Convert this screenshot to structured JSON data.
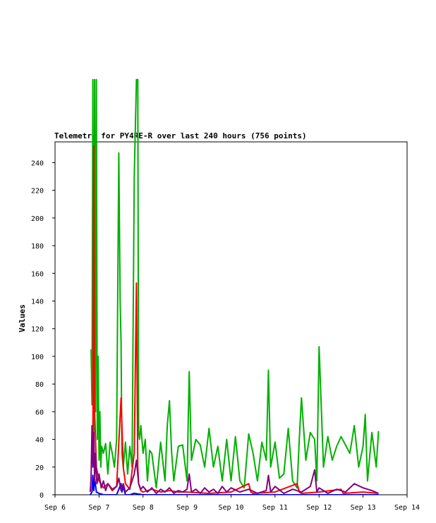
{
  "chart_data": {
    "type": "line",
    "title": "Telemetry for PY4RE-R over last 240 hours (756 points)",
    "xlabel": "",
    "ylabel": "Values",
    "x_ticks": [
      "Sep 6",
      "Sep 7",
      "Sep 8",
      "Sep 9",
      "Sep 10",
      "Sep 11",
      "Sep 12",
      "Sep 13",
      "Sep 14"
    ],
    "xlim": [
      6,
      14
    ],
    "ylim": [
      0,
      255
    ],
    "y_ticks": [
      0,
      20,
      40,
      60,
      80,
      100,
      120,
      140,
      160,
      180,
      200,
      220,
      240
    ],
    "grid": false,
    "legend": "none",
    "series": [
      {
        "color": "#00b000",
        "x": [
          6.82,
          6.84,
          6.86,
          6.88,
          6.9,
          6.92,
          6.94,
          6.96,
          6.98,
          7.0,
          7.02,
          7.04,
          7.06,
          7.1,
          7.15,
          7.2,
          7.25,
          7.3,
          7.35,
          7.4,
          7.45,
          7.48,
          7.5,
          7.52,
          7.55,
          7.6,
          7.65,
          7.7,
          7.75,
          7.8,
          7.85,
          7.88,
          7.9,
          7.92,
          7.95,
          8.0,
          8.05,
          8.1,
          8.15,
          8.2,
          8.3,
          8.4,
          8.5,
          8.55,
          8.6,
          8.65,
          8.7,
          8.8,
          8.9,
          9.0,
          9.05,
          9.1,
          9.2,
          9.3,
          9.4,
          9.5,
          9.6,
          9.7,
          9.8,
          9.9,
          10.0,
          10.1,
          10.2,
          10.3,
          10.4,
          10.5,
          10.6,
          10.7,
          10.8,
          10.85,
          10.9,
          11.0,
          11.1,
          11.2,
          11.3,
          11.4,
          11.5,
          11.55,
          11.6,
          11.7,
          11.8,
          11.9,
          11.95,
          12.0,
          12.1,
          12.2,
          12.3,
          12.4,
          12.5,
          12.6,
          12.7,
          12.8,
          12.9,
          13.0,
          13.05,
          13.1,
          13.2,
          13.3,
          13.35
        ],
        "y": [
          105,
          65,
          300,
          45,
          300,
          60,
          300,
          40,
          100,
          25,
          60,
          20,
          35,
          30,
          37,
          15,
          38,
          30,
          20,
          40,
          247,
          140,
          110,
          30,
          20,
          38,
          15,
          35,
          20,
          230,
          300,
          300,
          45,
          40,
          50,
          30,
          40,
          10,
          32,
          30,
          5,
          38,
          10,
          50,
          68,
          30,
          10,
          35,
          36,
          10,
          89,
          25,
          40,
          36,
          20,
          48,
          20,
          35,
          10,
          40,
          10,
          42,
          10,
          5,
          44,
          30,
          10,
          38,
          25,
          90,
          20,
          38,
          12,
          15,
          48,
          10,
          5,
          40,
          70,
          25,
          45,
          40,
          10,
          107,
          20,
          42,
          25,
          35,
          42,
          36,
          30,
          50,
          20,
          35,
          58,
          10,
          45,
          20,
          46
        ]
      },
      {
        "color": "#ff0000",
        "x": [
          6.86,
          6.88,
          6.9,
          6.92,
          6.94,
          7.0,
          7.1,
          7.2,
          7.3,
          7.4,
          7.5,
          7.55,
          7.6,
          7.7,
          7.8,
          7.85,
          7.88,
          7.9,
          7.95,
          8.0,
          8.2,
          8.4,
          8.6,
          8.8,
          9.0,
          9.5,
          10.0,
          10.4,
          10.45,
          10.5,
          11.0,
          11.5,
          11.55,
          11.6,
          12.0,
          12.5,
          12.55,
          13.0,
          13.35
        ],
        "y": [
          30,
          252,
          60,
          40,
          20,
          10,
          5,
          8,
          3,
          6,
          70,
          20,
          8,
          4,
          30,
          153,
          20,
          8,
          3,
          2,
          4,
          2,
          3,
          2,
          2,
          1,
          2,
          8,
          2,
          1,
          2,
          8,
          2,
          1,
          2,
          4,
          1,
          2,
          1
        ]
      },
      {
        "color": "#0000ff",
        "x": [
          6.8,
          6.84,
          6.86,
          6.88,
          6.9,
          6.94,
          7.0,
          7.1,
          7.4,
          7.5,
          7.52,
          7.55,
          7.6,
          7.7,
          7.8,
          8.0,
          8.5,
          9.0,
          10.0,
          11.0,
          12.0,
          13.0,
          13.35
        ],
        "y": [
          0,
          2,
          14,
          3,
          12,
          2,
          1,
          0,
          0,
          8,
          2,
          6,
          0,
          0,
          1,
          0,
          0,
          0,
          0,
          0,
          0,
          0,
          0
        ]
      },
      {
        "color": "#800080",
        "x": [
          6.8,
          6.82,
          6.84,
          6.86,
          6.88,
          6.9,
          6.92,
          6.95,
          7.0,
          7.05,
          7.1,
          7.15,
          7.2,
          7.3,
          7.4,
          7.45,
          7.5,
          7.55,
          7.6,
          7.7,
          7.8,
          7.85,
          7.9,
          7.95,
          8.0,
          8.1,
          8.2,
          8.3,
          8.4,
          8.5,
          8.6,
          8.7,
          8.8,
          8.9,
          9.0,
          9.05,
          9.1,
          9.2,
          9.3,
          9.4,
          9.5,
          9.6,
          9.7,
          9.8,
          9.9,
          10.0,
          10.2,
          10.4,
          10.6,
          10.8,
          10.85,
          10.9,
          11.0,
          11.2,
          11.4,
          11.6,
          11.8,
          11.9,
          11.95,
          12.0,
          12.2,
          12.4,
          12.6,
          12.8,
          13.0,
          13.2,
          13.35
        ],
        "y": [
          2,
          12,
          50,
          20,
          45,
          10,
          30,
          8,
          15,
          5,
          10,
          3,
          8,
          4,
          6,
          12,
          3,
          8,
          2,
          5,
          15,
          25,
          8,
          4,
          6,
          2,
          5,
          1,
          4,
          2,
          5,
          1,
          3,
          2,
          4,
          15,
          2,
          4,
          1,
          5,
          2,
          4,
          1,
          6,
          2,
          5,
          2,
          4,
          1,
          3,
          14,
          2,
          6,
          1,
          4,
          2,
          6,
          18,
          2,
          5,
          1,
          4,
          2,
          8,
          5,
          3,
          1
        ]
      }
    ]
  }
}
